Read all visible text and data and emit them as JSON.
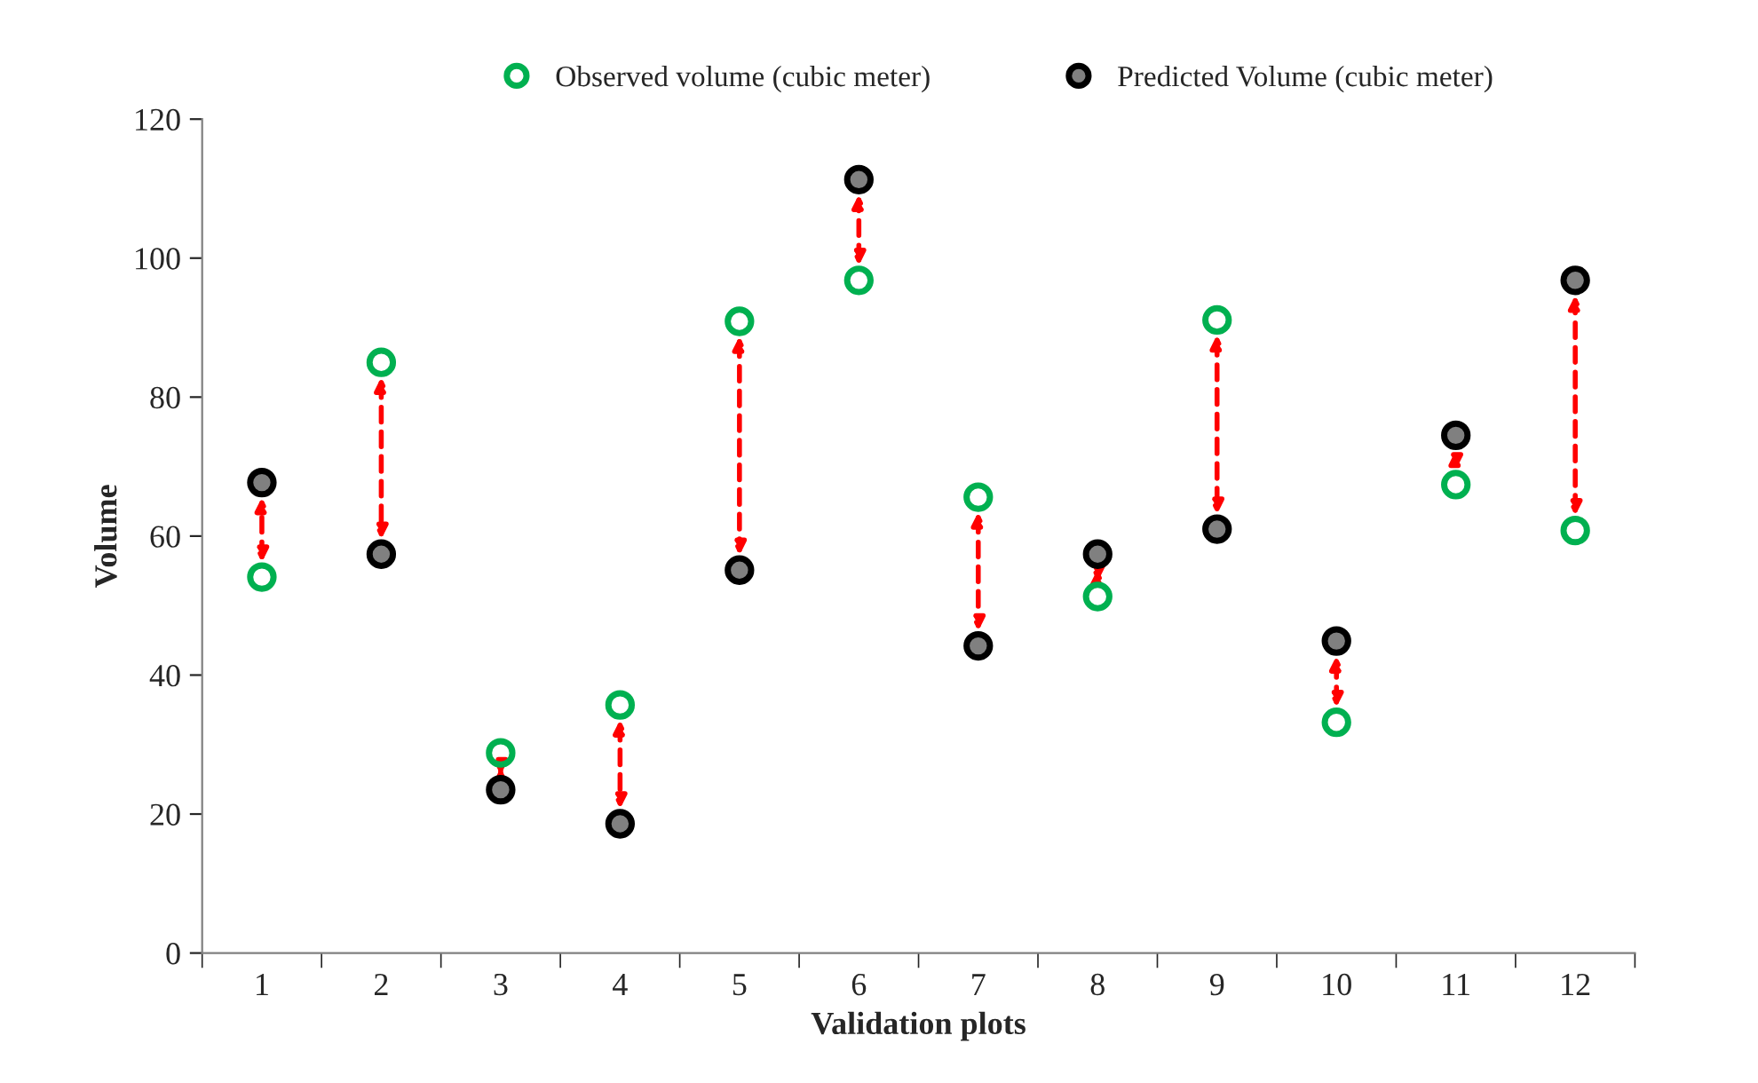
{
  "chart_data": {
    "type": "scatter",
    "xlabel": "Validation plots",
    "ylabel": "Volume",
    "categories": [
      "1",
      "2",
      "3",
      "4",
      "5",
      "6",
      "7",
      "8",
      "9",
      "10",
      "11",
      "12"
    ],
    "series": [
      {
        "name": "Observed volume (cubic meter)",
        "color": "#00b050",
        "values": [
          54.1,
          85.0,
          28.8,
          35.7,
          90.9,
          96.8,
          65.6,
          51.3,
          91.1,
          33.2,
          67.4,
          60.8
        ]
      },
      {
        "name": "Predicted Volume (cubic meter)",
        "color": "#808080",
        "values": [
          67.7,
          57.4,
          23.5,
          18.6,
          55.1,
          111.3,
          44.2,
          57.4,
          61.0,
          44.9,
          74.5,
          96.8
        ]
      }
    ],
    "ylim": [
      0,
      120
    ],
    "yticks": [
      0,
      20,
      40,
      60,
      80,
      100,
      120
    ],
    "grid": false,
    "legend": "top",
    "marker": "circle"
  }
}
